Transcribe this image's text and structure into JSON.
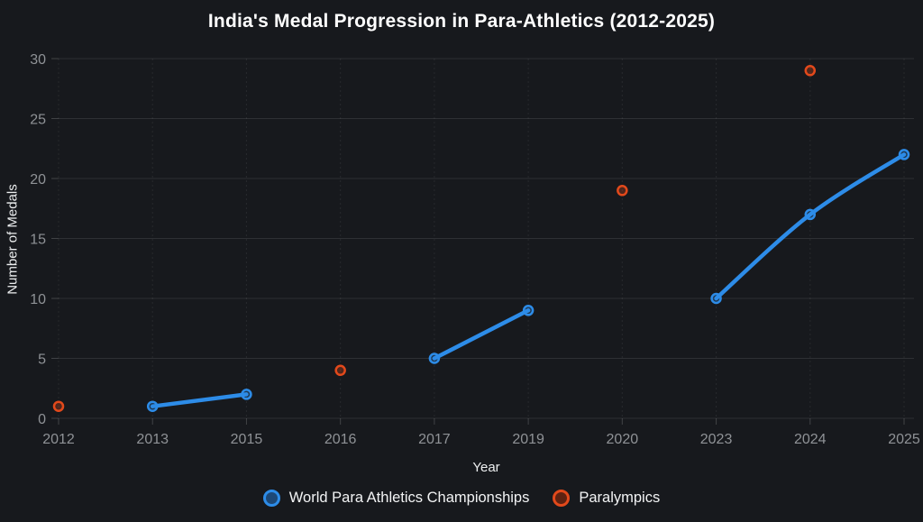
{
  "title": "India's Medal Progression in Para-Athletics (2012-2025)",
  "colors": {
    "background": "#17191d",
    "title_text": "#ffffff",
    "tick_label_text": "#8f9296",
    "axis_title_text": "#eceeef",
    "grid_horizontal": "rgba(255,255,255,0.10)",
    "grid_vertical": "rgba(255,255,255,0.07)",
    "tick_mark": "rgba(255,255,255,0.18)"
  },
  "chart_data": {
    "type": "line",
    "title": "India's Medal Progression in Para-Athletics (2012-2025)",
    "xlabel": "Year",
    "ylabel": "Number of Medals",
    "categories": [
      "2012",
      "2013",
      "2015",
      "2016",
      "2017",
      "2019",
      "2020",
      "2023",
      "2024",
      "2025"
    ],
    "yticks": [
      "0",
      "5",
      "10",
      "15",
      "20",
      "25",
      "30"
    ],
    "ytick_values": [
      0,
      5,
      10,
      15,
      20,
      25,
      30
    ],
    "ylim": [
      0,
      30
    ],
    "grid": true,
    "legend_position": "bottom",
    "series": [
      {
        "name": "World Para Athletics Championships",
        "mode": "line",
        "color": "#2d8ce8",
        "marker_fill": "rgba(45,140,232,0.28)",
        "legend_fill": "#1d4876",
        "values": [
          null,
          1,
          2,
          null,
          5,
          9,
          null,
          10,
          17,
          22
        ]
      },
      {
        "name": "Paralympics",
        "mode": "scatter",
        "color": "#e2491b",
        "marker_fill": "rgba(226,73,27,0.28)",
        "legend_fill": "#5e2211",
        "values": [
          1,
          null,
          null,
          4,
          null,
          null,
          19,
          null,
          29,
          null
        ]
      }
    ]
  }
}
